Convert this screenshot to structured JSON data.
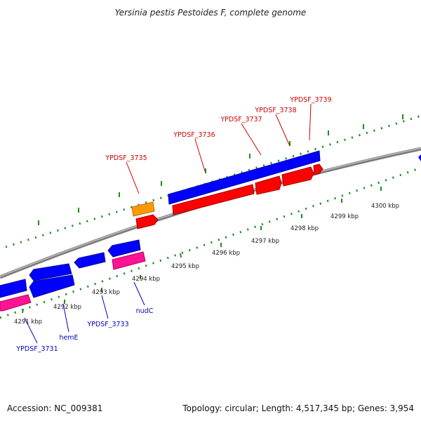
{
  "title": "Yersinia pestis Pestoides F, complete genome",
  "footer": {
    "accession": "Accession: NC_009381",
    "summary": "Topology: circular; Length: 4,517,345 bp; Genes: 3,954"
  },
  "colors": {
    "background": "#ffffff",
    "backbone": "#8f8f8f",
    "ticks": "#1e8a1e",
    "forward_gene": "#ff0000",
    "reverse_gene": "#0000ff",
    "rna_orange": "#ff9900",
    "pink_feature": "#ff1493",
    "forward_label": "#cc0000",
    "reverse_label": "#0000bb"
  },
  "scale_labels": [
    "4291 kbp",
    "4292 kbp",
    "4293 kbp",
    "4294 kbp",
    "4295 kbp",
    "4296 kbp",
    "4297 kbp",
    "4298 kbp",
    "4299 kbp",
    "4300 kbp"
  ],
  "forward_gene_labels": [
    "YPDSF_3735",
    "YPDSF_3736",
    "YPDSF_3737",
    "YPDSF_3738",
    "YPDSF_3739"
  ],
  "reverse_gene_labels": [
    "YPDSF_3731",
    "hemE",
    "YPDSF_3733",
    "nudC"
  ]
}
